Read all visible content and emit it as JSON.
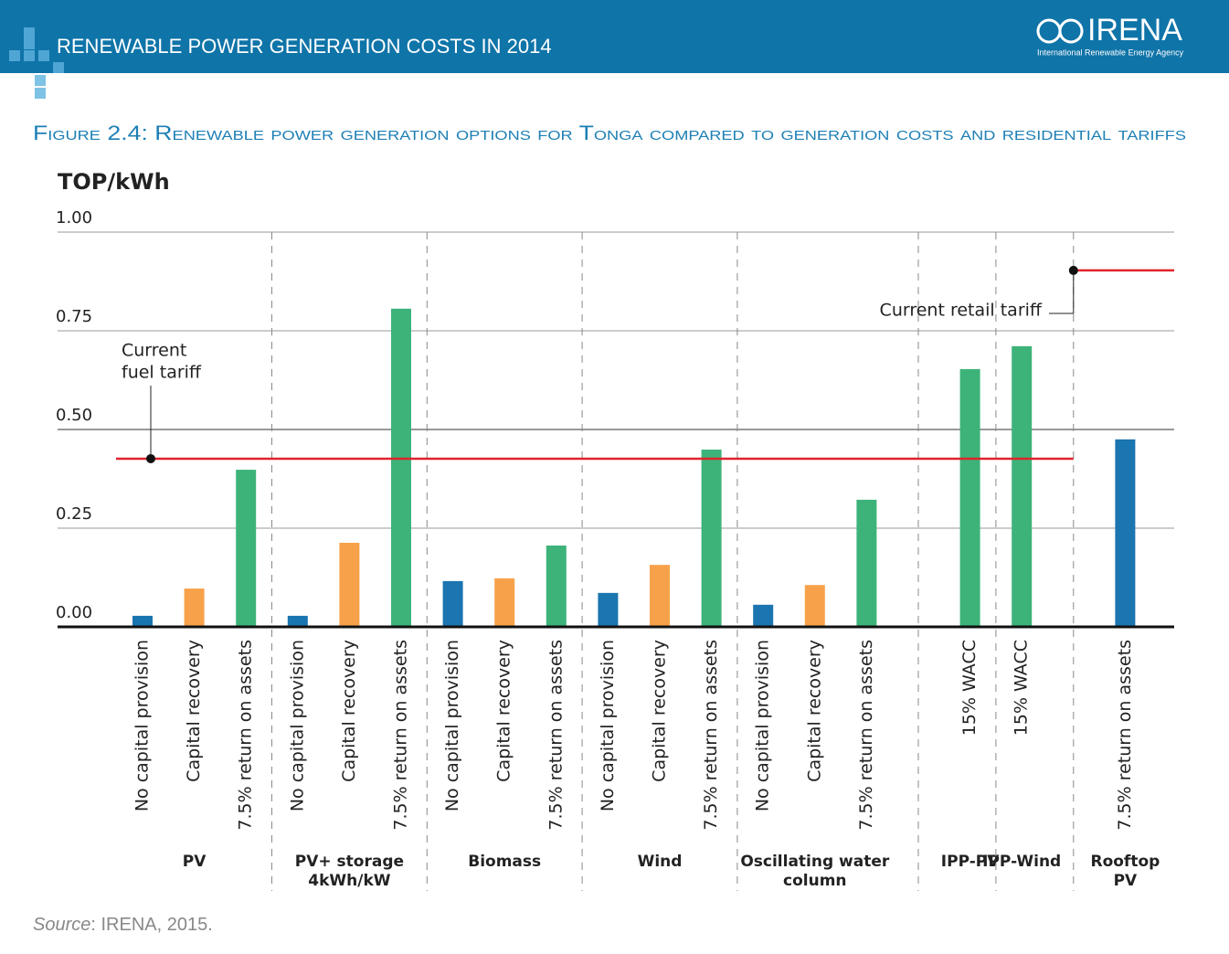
{
  "header": {
    "title": "RENEWABLE POWER GENERATION COSTS IN 2014",
    "logo": "IRENA",
    "logo_subtitle": "International Renewable Energy Agency"
  },
  "chart_data": {
    "type": "bar",
    "title": "Figure 2.4: Renewable power generation options for Tonga compared to generation costs and residential tariffs",
    "y_label": "TOP/kWh",
    "ylim": [
      0,
      1
    ],
    "yticks": [
      {
        "value": 0,
        "label": "0.00"
      },
      {
        "value": 0.25,
        "label": "0.25"
      },
      {
        "value": 0.5,
        "label": "0.50"
      },
      {
        "value": 0.75,
        "label": "0.75"
      },
      {
        "value": 1,
        "label": "1.00"
      }
    ],
    "grid": true,
    "groups": [
      {
        "name": [
          "PV"
        ],
        "bars": [
          {
            "label": "No capital provision",
            "value": 0.028,
            "color": "#1a75b0"
          },
          {
            "label": "Capital recovery",
            "value": 0.097,
            "color": "#f7a24a"
          },
          {
            "label": "7.5% return on assets",
            "value": 0.398,
            "color": "#3db37a"
          }
        ]
      },
      {
        "name": [
          "PV+ storage",
          "4kWh/kW"
        ],
        "bars": [
          {
            "label": "No capital provision",
            "value": 0.028,
            "color": "#1a75b0"
          },
          {
            "label": "Capital recovery",
            "value": 0.213,
            "color": "#f7a24a"
          },
          {
            "label": "7.5% return on assets",
            "value": 0.806,
            "color": "#3db37a"
          }
        ]
      },
      {
        "name": [
          "Biomass"
        ],
        "bars": [
          {
            "label": "No capital provision",
            "value": 0.116,
            "color": "#1a75b0"
          },
          {
            "label": "Capital recovery",
            "value": 0.123,
            "color": "#f7a24a"
          },
          {
            "label": "7.5% return on assets",
            "value": 0.206,
            "color": "#3db37a"
          }
        ]
      },
      {
        "name": [
          "Wind"
        ],
        "bars": [
          {
            "label": "No capital provision",
            "value": 0.086,
            "color": "#1a75b0"
          },
          {
            "label": "Capital recovery",
            "value": 0.157,
            "color": "#f7a24a"
          },
          {
            "label": "7.5% return on assets",
            "value": 0.449,
            "color": "#3db37a"
          }
        ]
      },
      {
        "name": [
          "Oscillating water",
          "column"
        ],
        "bars": [
          {
            "label": "No capital provision",
            "value": 0.056,
            "color": "#1a75b0"
          },
          {
            "label": "Capital recovery",
            "value": 0.106,
            "color": "#f7a24a"
          },
          {
            "label": "7.5% return on assets",
            "value": 0.322,
            "color": "#3db37a"
          }
        ]
      },
      {
        "name": [
          "IPP-PV"
        ],
        "bars": [
          {
            "label": "15% WACC",
            "value": 0.653,
            "color": "#3db37a"
          }
        ]
      },
      {
        "name": [
          "IPP-Wind"
        ],
        "bars": [
          {
            "label": "15% WACC",
            "value": 0.711,
            "color": "#3db37a"
          }
        ]
      },
      {
        "name": [
          "Rooftop",
          "PV"
        ],
        "bars": [
          {
            "label": "7.5% return on assets",
            "value": 0.475,
            "color": "#1a75b0"
          }
        ]
      }
    ],
    "reference_lines": [
      {
        "label": [
          "Current",
          "fuel tariff"
        ],
        "value": 0.426,
        "color": "#e0242b"
      },
      {
        "label": [
          "Current retail tariff"
        ],
        "value": 0.903,
        "color": "#e0242b"
      }
    ],
    "source": {
      "label": "Source",
      "text": ": IRENA, 2015."
    }
  }
}
